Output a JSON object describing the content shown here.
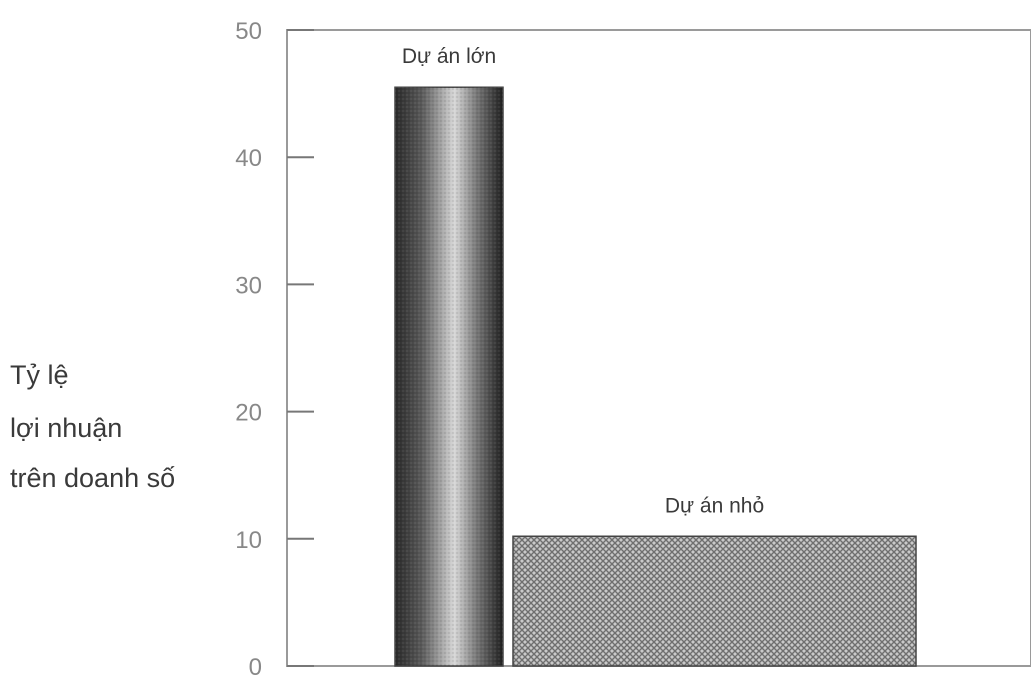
{
  "chart_data": {
    "type": "bar",
    "categories": [
      "Dự án lớn",
      "Dự án nhỏ"
    ],
    "values": [
      45.5,
      10.2
    ],
    "ylabel_lines": [
      "Tỷ lệ",
      "lợi nhuận",
      "trên doanh số"
    ],
    "ylim": [
      0,
      50
    ],
    "yticks": [
      "0",
      "10",
      "20",
      "30",
      "40",
      "50"
    ],
    "grid": false,
    "colors": {
      "large": "#555555",
      "small": "#8a8a8a",
      "axis": "#777777"
    }
  }
}
